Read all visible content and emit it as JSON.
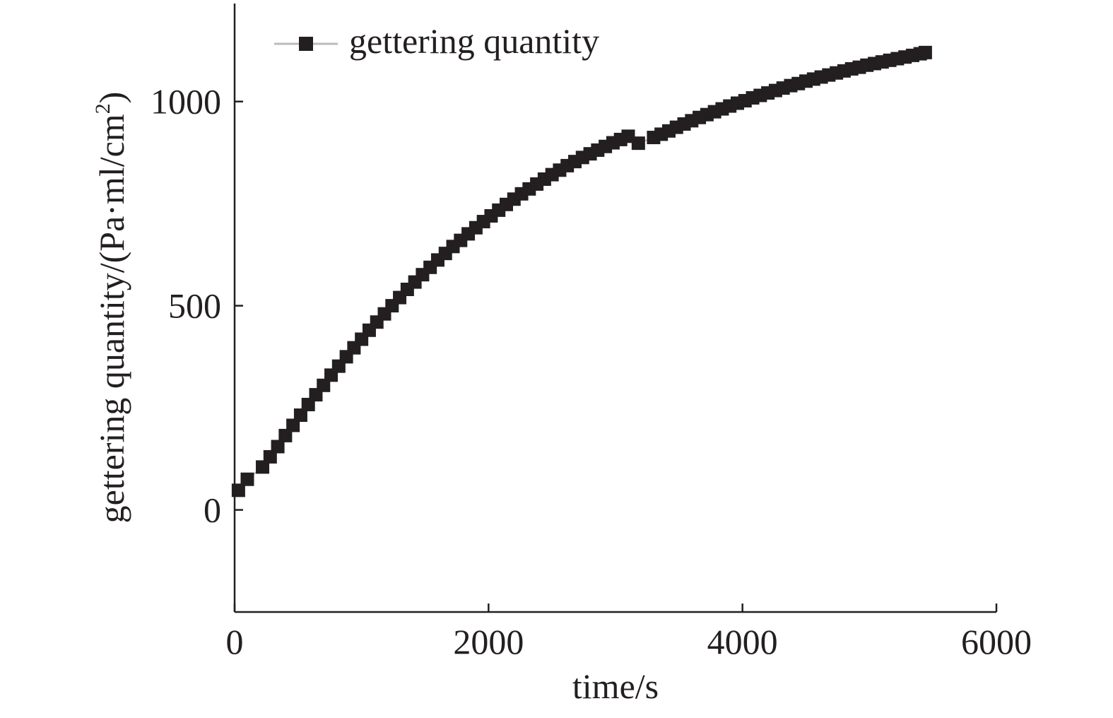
{
  "chart_data": {
    "type": "scatter",
    "title": "",
    "xlabel": "time/s",
    "ylabel_main": "gettering quantity/(Pa·ml/cm",
    "ylabel_sup": "2",
    "ylabel_close": ")",
    "xlim": [
      0,
      6000
    ],
    "ylim": [
      -250,
      1240
    ],
    "xticks": [
      0,
      2000,
      4000,
      6000
    ],
    "xtick_labels": [
      "0",
      "2000",
      "4000",
      "6000"
    ],
    "yticks": [
      0,
      500,
      1000
    ],
    "ytick_labels": [
      "0",
      "500",
      "1000"
    ],
    "grid": false,
    "legend_position": "top-left",
    "series": [
      {
        "name": "gettering quantity",
        "marker": "square",
        "color": "#231f20",
        "line_color": "#bbbbbb",
        "x": [
          30,
          100,
          220,
          280,
          340,
          400,
          460,
          520,
          580,
          640,
          700,
          760,
          820,
          880,
          940,
          1000,
          1060,
          1120,
          1180,
          1240,
          1300,
          1360,
          1420,
          1480,
          1540,
          1600,
          1660,
          1720,
          1780,
          1840,
          1900,
          1960,
          2020,
          2080,
          2140,
          2200,
          2260,
          2320,
          2380,
          2440,
          2500,
          2560,
          2620,
          2680,
          2740,
          2800,
          2860,
          2920,
          2980,
          3040,
          3100,
          3180,
          3300,
          3360,
          3420,
          3480,
          3540,
          3600,
          3660,
          3720,
          3780,
          3840,
          3900,
          3960,
          4020,
          4080,
          4140,
          4200,
          4260,
          4320,
          4380,
          4440,
          4500,
          4560,
          4620,
          4680,
          4740,
          4800,
          4860,
          4920,
          4980,
          5040,
          5100,
          5160,
          5220,
          5280,
          5340,
          5400,
          5440
        ],
        "y": [
          48,
          75,
          105,
          130,
          155,
          182,
          207,
          232,
          258,
          282,
          305,
          330,
          352,
          375,
          397,
          418,
          440,
          460,
          480,
          500,
          520,
          540,
          558,
          576,
          594,
          612,
          628,
          645,
          660,
          676,
          691,
          706,
          720,
          734,
          748,
          761,
          774,
          786,
          798,
          810,
          821,
          832,
          843,
          853,
          863,
          872,
          881,
          890,
          899,
          907,
          915,
          898,
          912,
          920,
          928,
          937,
          945,
          953,
          961,
          968,
          975,
          982,
          989,
          996,
          1002,
          1009,
          1015,
          1021,
          1027,
          1033,
          1039,
          1044,
          1050,
          1055,
          1060,
          1065,
          1070,
          1075,
          1080,
          1084,
          1089,
          1093,
          1097,
          1101,
          1105,
          1109,
          1113,
          1117,
          1120
        ]
      }
    ]
  }
}
